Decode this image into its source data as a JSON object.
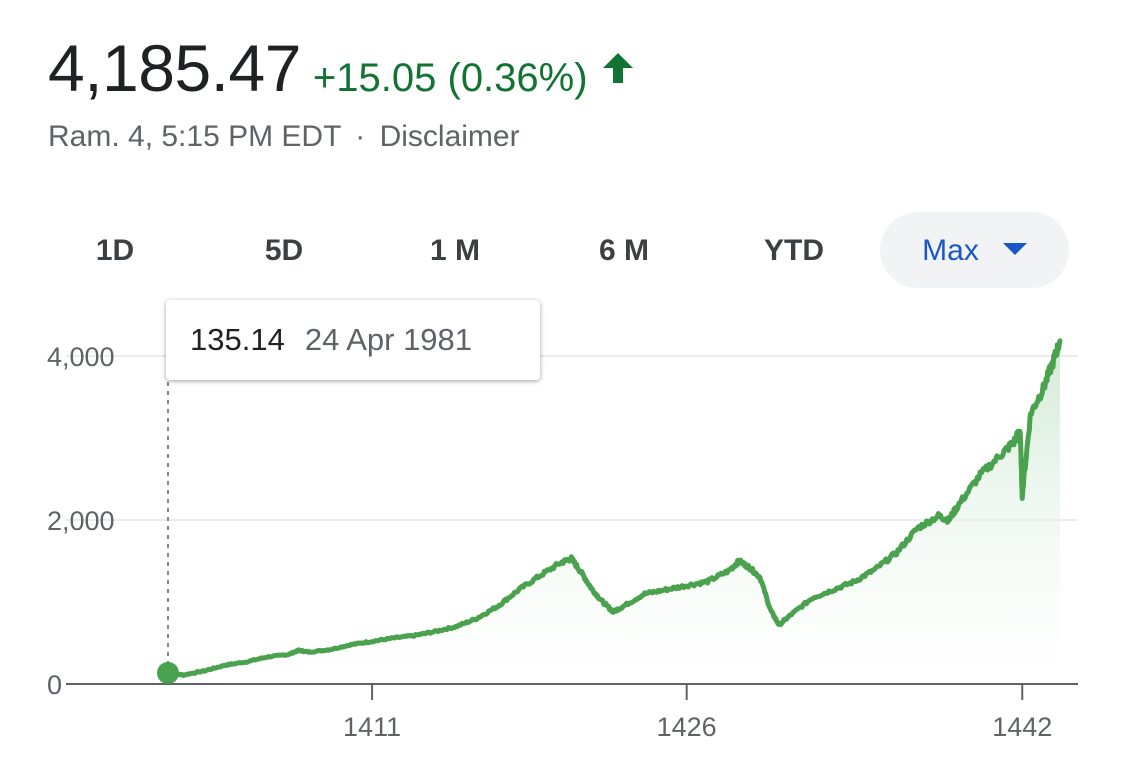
{
  "header": {
    "price": "4,185.47",
    "change": "+15.05 (0.36%)",
    "date_time": "Ram. 4, 5:15 PM EDT",
    "separator": "·",
    "disclaimer": "Disclaimer",
    "arrow_icon": "arrow-up-icon",
    "positive_color": "#137333"
  },
  "range_tabs": [
    {
      "label": "1D",
      "active": false
    },
    {
      "label": "5D",
      "active": false
    },
    {
      "label": "1 M",
      "active": false
    },
    {
      "label": "6 M",
      "active": false
    },
    {
      "label": "YTD",
      "active": false
    },
    {
      "label": "Max",
      "active": true,
      "icon": "dropdown-caret-icon"
    }
  ],
  "tooltip": {
    "value": "135.14",
    "date": "24 Apr 1981"
  },
  "chart_data": {
    "type": "area",
    "title": "",
    "xlabel": "",
    "ylabel": "",
    "x_ticks": [
      "1411",
      "1426",
      "1442"
    ],
    "y_ticks": [
      0,
      2000,
      4000
    ],
    "y_tick_labels": [
      "0",
      "2,000",
      "4,000"
    ],
    "ylim": [
      0,
      4000
    ],
    "grid": true,
    "line_color": "#4aa14e",
    "fill_color": "#e6f4ea",
    "series": [
      {
        "points": [
          [
            1401.27,
            135
          ],
          [
            1402,
            110
          ],
          [
            1403,
            160
          ],
          [
            1404,
            230
          ],
          [
            1405,
            270
          ],
          [
            1406,
            330
          ],
          [
            1407,
            360
          ],
          [
            1407.5,
            410
          ],
          [
            1408,
            390
          ],
          [
            1409,
            420
          ],
          [
            1410,
            480
          ],
          [
            1411,
            520
          ],
          [
            1412,
            560
          ],
          [
            1413,
            590
          ],
          [
            1414,
            640
          ],
          [
            1415,
            700
          ],
          [
            1416,
            800
          ],
          [
            1417,
            950
          ],
          [
            1418,
            1150
          ],
          [
            1419,
            1320
          ],
          [
            1420,
            1480
          ],
          [
            1420.5,
            1530
          ],
          [
            1421,
            1350
          ],
          [
            1421.5,
            1150
          ],
          [
            1422,
            1000
          ],
          [
            1422.5,
            880
          ],
          [
            1423,
            950
          ],
          [
            1424,
            1100
          ],
          [
            1425,
            1150
          ],
          [
            1426,
            1200
          ],
          [
            1427,
            1250
          ],
          [
            1428,
            1380
          ],
          [
            1428.5,
            1500
          ],
          [
            1429,
            1420
          ],
          [
            1429.5,
            1300
          ],
          [
            1430,
            900
          ],
          [
            1430.4,
            720
          ],
          [
            1431,
            850
          ],
          [
            1432,
            1050
          ],
          [
            1433,
            1150
          ],
          [
            1434,
            1250
          ],
          [
            1435,
            1400
          ],
          [
            1436,
            1600
          ],
          [
            1437,
            1900
          ],
          [
            1438,
            2050
          ],
          [
            1438.5,
            2000
          ],
          [
            1439,
            2200
          ],
          [
            1440,
            2550
          ],
          [
            1441,
            2800
          ],
          [
            1441.6,
            2950
          ],
          [
            1441.9,
            3100
          ],
          [
            1442,
            2300
          ],
          [
            1442.4,
            3300
          ],
          [
            1443,
            3600
          ],
          [
            1443.5,
            3950
          ],
          [
            1443.8,
            4185
          ]
        ]
      }
    ],
    "marker": {
      "x": 1401.27,
      "y": 135.14
    }
  }
}
